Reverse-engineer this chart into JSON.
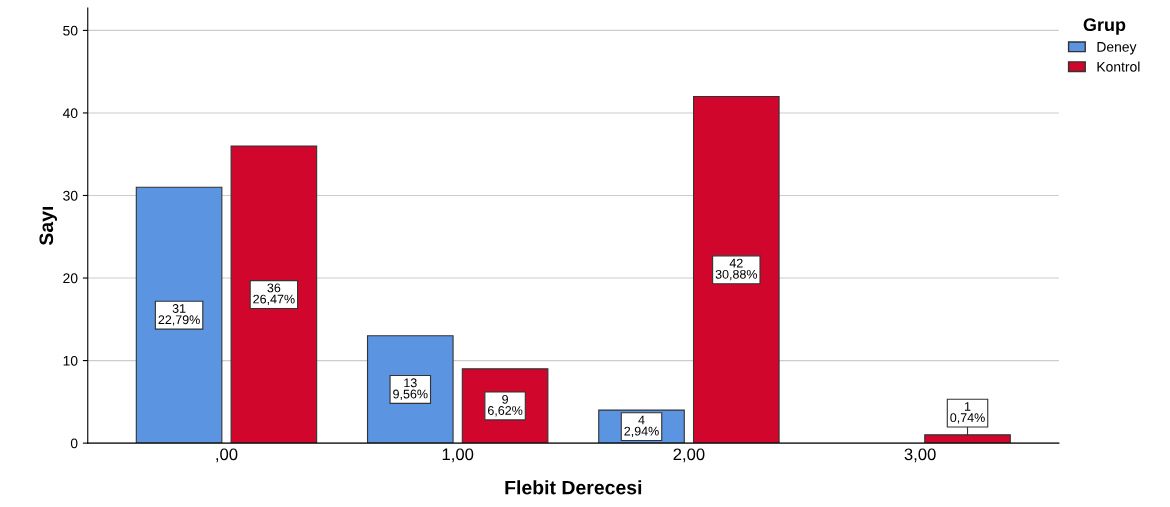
{
  "chart_data": {
    "type": "bar",
    "xlabel": "Flebit Derecesi",
    "ylabel": "Sayı",
    "legend_title": "Grup",
    "categories": [
      ",00",
      "1,00",
      "2,00",
      "3,00"
    ],
    "series": [
      {
        "name": "Deney",
        "color": "#5b94e0",
        "values": [
          31,
          13,
          4,
          null
        ],
        "value_labels": [
          "31\n22,79%",
          "13\n9,56%",
          "4\n2,94%",
          null
        ]
      },
      {
        "name": "Kontrol",
        "color": "#d1062c",
        "values": [
          36,
          9,
          42,
          1
        ],
        "value_labels": [
          "36\n26,47%",
          "9\n6,62%",
          "42\n30,88%",
          "1\n0,74%"
        ]
      }
    ],
    "ylim": [
      0,
      52.7
    ],
    "yticks": [
      0,
      10,
      20,
      30,
      40,
      50
    ],
    "grid": "y",
    "legend": "top right"
  }
}
